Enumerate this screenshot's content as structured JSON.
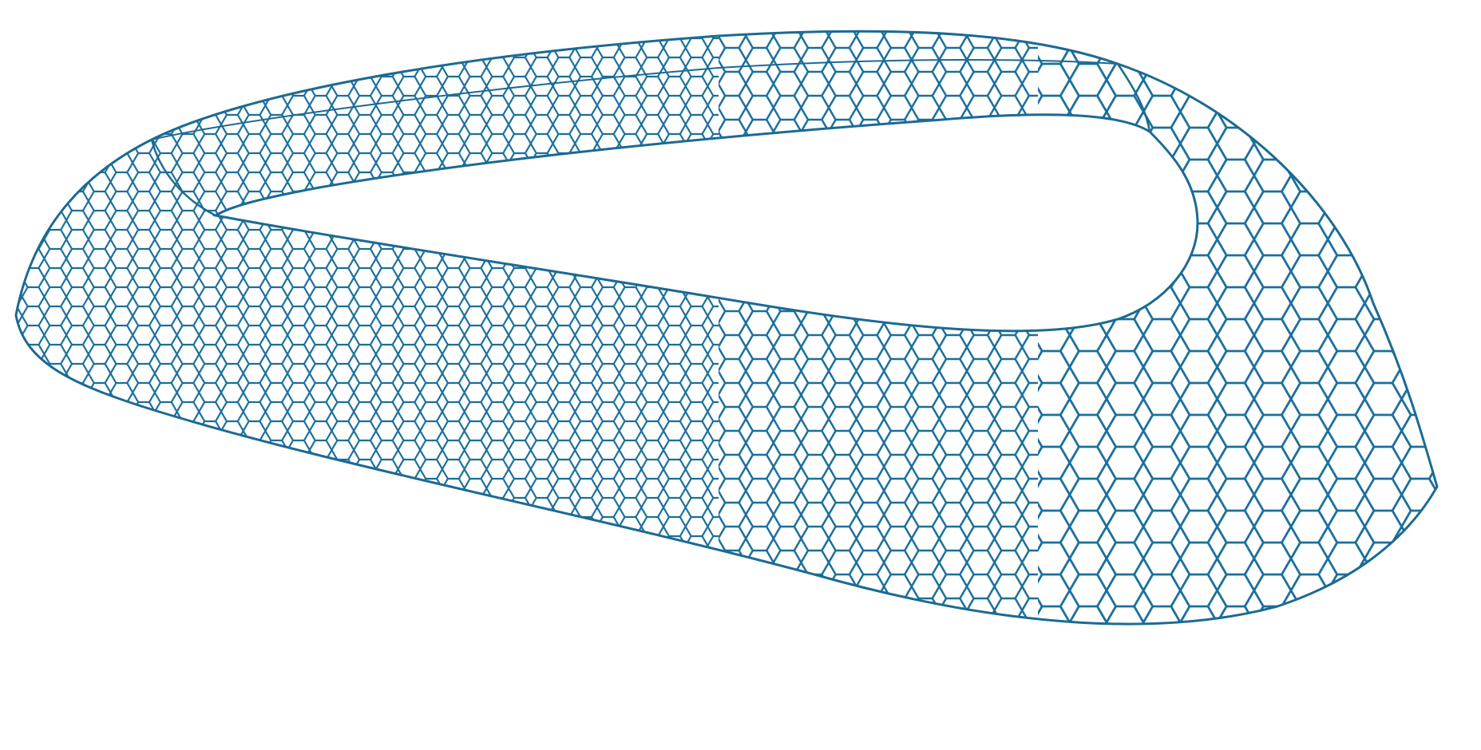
{
  "figure": {
    "background_color": "#ffffff",
    "mesh_color": "#1a6f9a",
    "outline_color": "#1c6a93",
    "shape": "open hexagonal lattice shell with a large central opening",
    "cell_pattern": "hexagon"
  }
}
